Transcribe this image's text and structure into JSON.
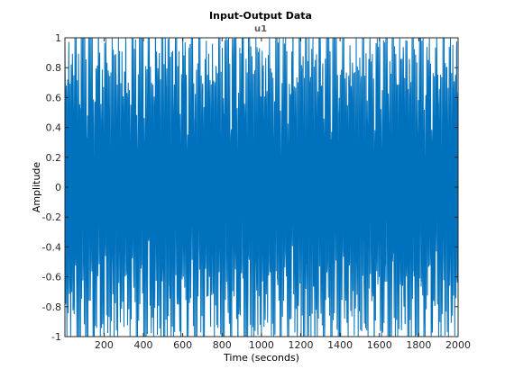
{
  "chart_data": {
    "type": "line",
    "title": "Input-Output Data",
    "subtitle": "u1",
    "xlabel": "Time (seconds)",
    "ylabel": "Amplitude",
    "xlim": [
      1,
      2000
    ],
    "ylim": [
      -1,
      1
    ],
    "x_ticks": [
      200,
      400,
      600,
      800,
      1000,
      1200,
      1400,
      1600,
      1800,
      2000
    ],
    "x_tick_labels": [
      "200",
      "400",
      "600",
      "800",
      "1000",
      "1200",
      "1400",
      "1600",
      "1800",
      "2000"
    ],
    "y_ticks": [
      -1,
      -0.8,
      -0.6,
      -0.4,
      -0.2,
      0,
      0.2,
      0.4,
      0.6,
      0.8,
      1
    ],
    "y_tick_labels": [
      "-1",
      "-0.8",
      "-0.6",
      "-0.4",
      "-0.2",
      "0",
      "0.2",
      "0.4",
      "0.6",
      "0.8",
      "1"
    ],
    "grid": false,
    "series": [
      {
        "color": "#0072bd",
        "x_start": 1,
        "x_end": 2000,
        "sample_step": 1,
        "values_summary": {
          "min": -1,
          "max": 1,
          "pattern": "dense oscillating input signal across the full time range"
        }
      }
    ]
  }
}
